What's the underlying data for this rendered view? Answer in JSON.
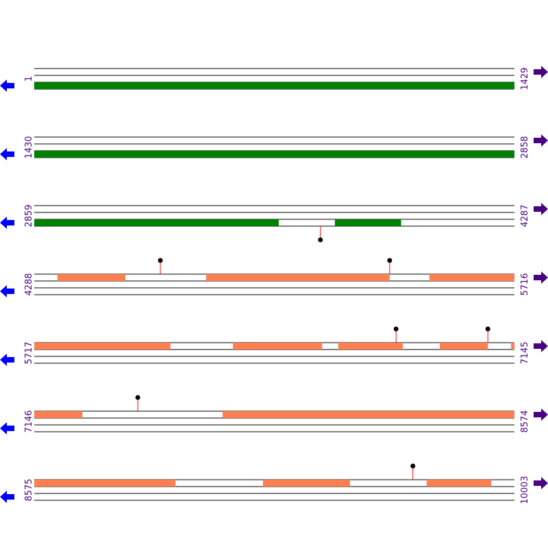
{
  "rows": [
    {
      "start": 1,
      "end": 1429,
      "color": "#008000",
      "features": [
        [
          1,
          1429
        ]
      ],
      "markers": []
    },
    {
      "start": 1430,
      "end": 2858,
      "color": "#008000",
      "features": [
        [
          1430,
          2858
        ]
      ],
      "markers": []
    },
    {
      "start": 2859,
      "end": 4287,
      "color": "#008000",
      "features": [
        [
          2859,
          3586
        ],
        [
          3753,
          3950
        ]
      ],
      "markers": [
        3710
      ]
    },
    {
      "start": 4288,
      "end": 5716,
      "color": "#ff7f50",
      "features": [
        [
          4357,
          4559
        ],
        [
          4799,
          5345
        ],
        [
          5463,
          5716
        ]
      ],
      "markers": [
        4663,
        5345
      ]
    },
    {
      "start": 5717,
      "end": 7145,
      "color": "#ff7f50",
      "features": [
        [
          5717,
          6122
        ],
        [
          6308,
          6573
        ],
        [
          6621,
          6813
        ],
        [
          6923,
          7066
        ],
        [
          7135,
          7145
        ]
      ],
      "markers": [
        6793,
        7066
      ]
    },
    {
      "start": 7146,
      "end": 8574,
      "color": "#ff7f50",
      "features": [
        [
          7146,
          7289
        ],
        [
          7706,
          8574
        ]
      ],
      "markers": [
        7454
      ]
    },
    {
      "start": 8575,
      "end": 10003,
      "color": "#ff7f50",
      "features": [
        [
          8575,
          8995
        ],
        [
          9255,
          9514
        ],
        [
          9742,
          9934
        ]
      ],
      "markers": [
        9701
      ]
    }
  ]
}
